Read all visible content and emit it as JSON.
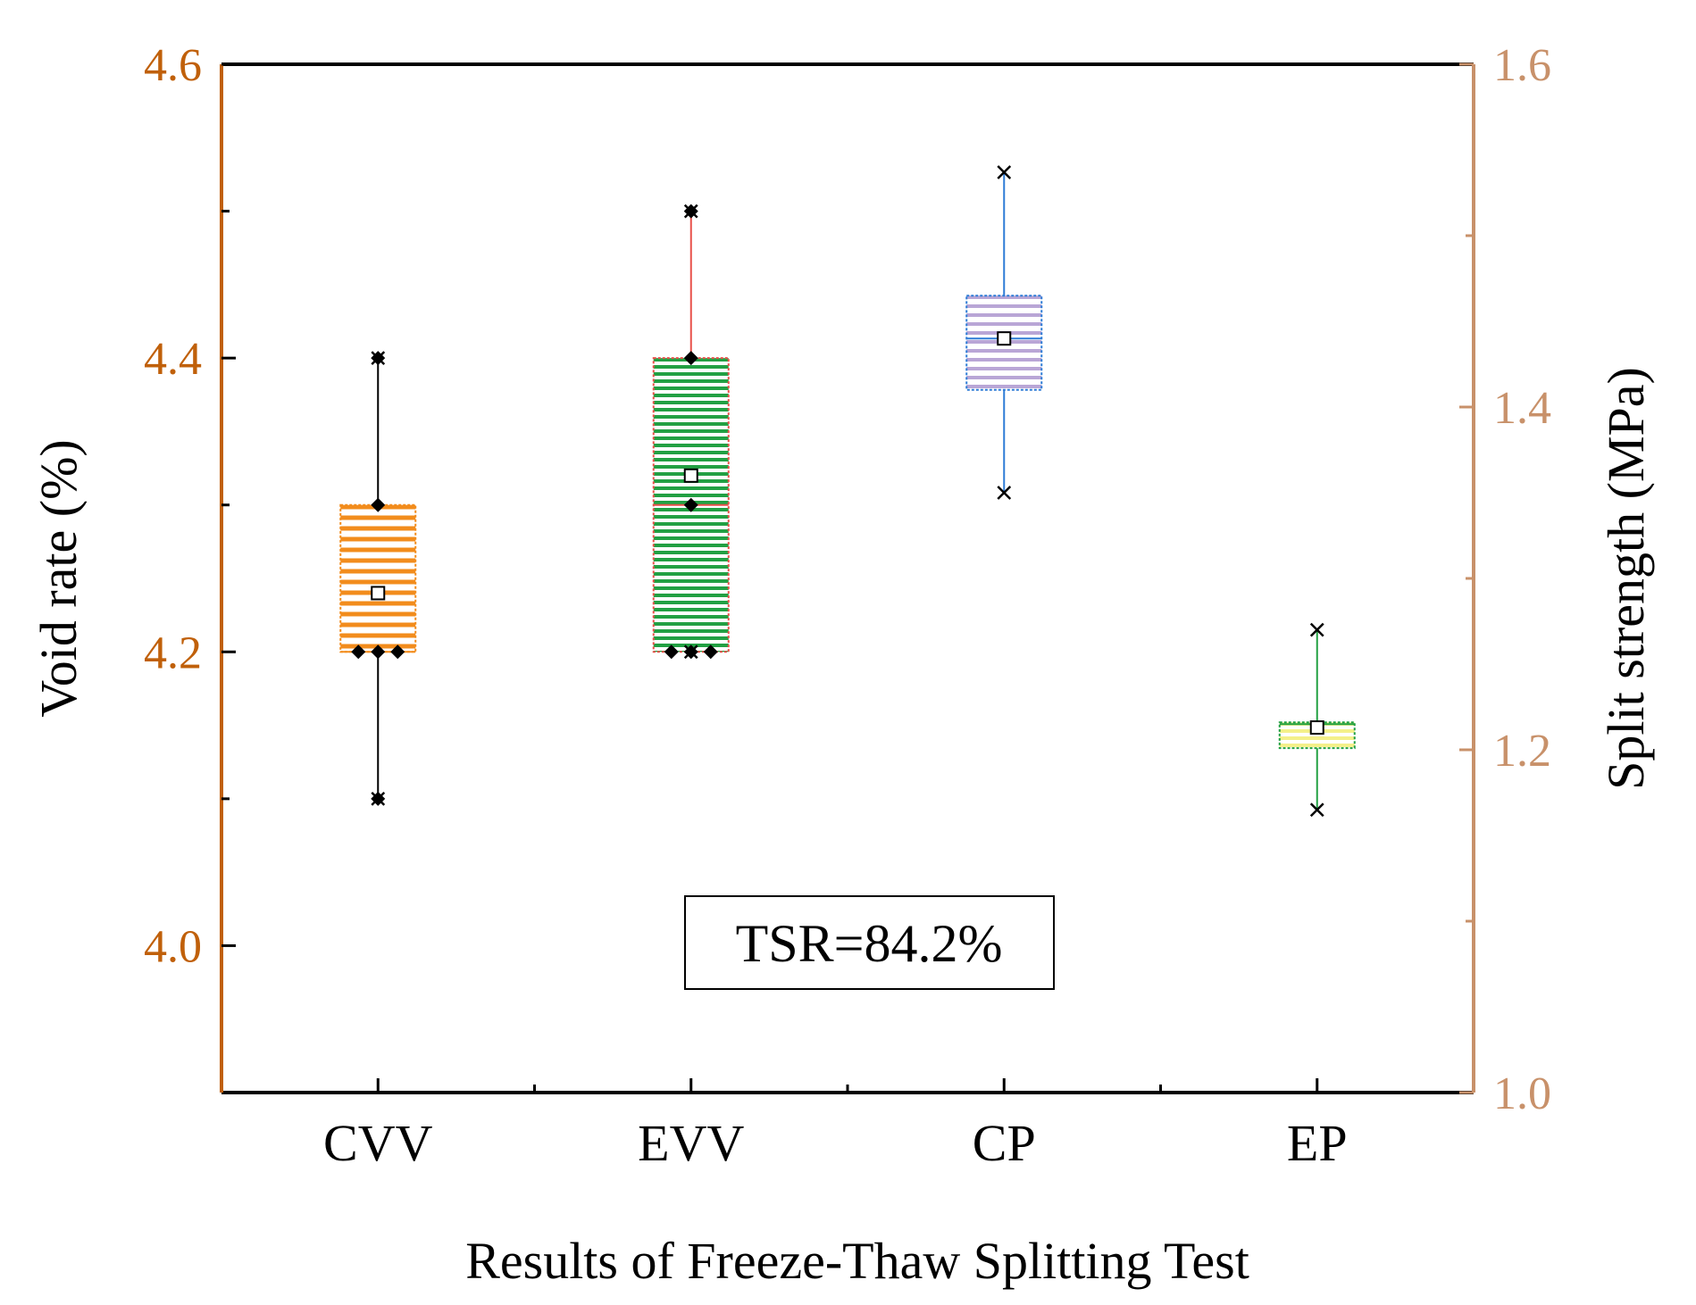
{
  "chart_data": {
    "type": "box",
    "xlabel": "Results of Freeze-Thaw Splitting Test",
    "categories": [
      "CVV",
      "EVV",
      "CP",
      "EP"
    ],
    "left_axis": {
      "label": "Void rate (%)",
      "range": [
        3.9,
        4.6
      ],
      "ticks": [
        4.0,
        4.2,
        4.4,
        4.6
      ],
      "tick_labels": [
        "4.0",
        "4.2",
        "4.4",
        "4.6"
      ],
      "minor_ticks": [
        4.1,
        4.3,
        4.5
      ],
      "color": "#C0600A"
    },
    "right_axis": {
      "label": "Split strength (MPa)",
      "range": [
        1.0,
        1.6
      ],
      "ticks": [
        1.0,
        1.2,
        1.4,
        1.6
      ],
      "tick_labels": [
        "1.0",
        "1.2",
        "1.4",
        "1.6"
      ],
      "minor_ticks": [
        1.1,
        1.3,
        1.5
      ],
      "color": "#C8916A"
    },
    "series": [
      {
        "name": "CVV",
        "axis": "left",
        "min": 4.1,
        "q1": 4.2,
        "median": 4.2,
        "q3": 4.3,
        "max": 4.4,
        "mean": 4.24,
        "fill": "#F28C1C",
        "edge": "#F28C1C",
        "whisker_color": "#000000",
        "points": [
          4.1,
          4.2,
          4.2,
          4.2,
          4.3,
          4.4
        ]
      },
      {
        "name": "EVV",
        "axis": "left",
        "min": 4.2,
        "q1": 4.2,
        "median": 4.3,
        "q3": 4.4,
        "max": 4.5,
        "mean": 4.32,
        "fill": "#22A043",
        "edge": "#E8504A",
        "whisker_color": "#E8504A",
        "points": [
          4.2,
          4.2,
          4.2,
          4.3,
          4.4,
          4.5
        ]
      },
      {
        "name": "CP",
        "axis": "right",
        "min": 1.35,
        "q1": 1.41,
        "median": 1.44,
        "q3": 1.465,
        "max": 1.537,
        "mean": 1.44,
        "fill": "#B9A6D6",
        "edge": "#2E7CD6",
        "whisker_color": "#2E7CD6",
        "points": [
          1.537,
          1.35
        ]
      },
      {
        "name": "EP",
        "axis": "right",
        "min": 1.165,
        "q1": 1.201,
        "median": 1.215,
        "q3": 1.216,
        "max": 1.27,
        "mean": 1.213,
        "fill": "#F4F08A",
        "edge": "#22A043",
        "whisker_color": "#22A043",
        "points": [
          1.27,
          1.165
        ]
      }
    ],
    "annotation": "TSR=84.2%"
  }
}
